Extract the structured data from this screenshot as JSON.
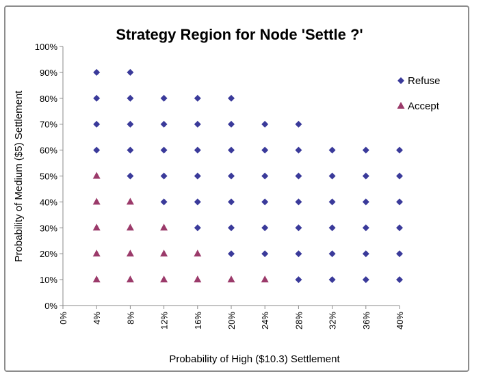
{
  "chart_data": {
    "type": "scatter",
    "title": "Strategy Region for Node 'Settle ?'",
    "xlabel": "Probability of High ($10.3) Settlement",
    "ylabel": "Probability of Medium ($5) Settlement",
    "xlim": [
      0,
      0.4
    ],
    "ylim": [
      0,
      1.0
    ],
    "x_ticks": [
      "0%",
      "4%",
      "8%",
      "12%",
      "16%",
      "20%",
      "24%",
      "28%",
      "32%",
      "36%",
      "40%"
    ],
    "y_ticks": [
      "0%",
      "10%",
      "20%",
      "30%",
      "40%",
      "50%",
      "60%",
      "70%",
      "80%",
      "90%",
      "100%"
    ],
    "grid": false,
    "legend_position": "right",
    "series": [
      {
        "name": "Refuse",
        "marker": "diamond",
        "color": "#3a3a9a",
        "points": [
          [
            0.04,
            0.6
          ],
          [
            0.04,
            0.7
          ],
          [
            0.04,
            0.8
          ],
          [
            0.04,
            0.9
          ],
          [
            0.08,
            0.5
          ],
          [
            0.08,
            0.6
          ],
          [
            0.08,
            0.7
          ],
          [
            0.08,
            0.8
          ],
          [
            0.08,
            0.9
          ],
          [
            0.12,
            0.4
          ],
          [
            0.12,
            0.5
          ],
          [
            0.12,
            0.6
          ],
          [
            0.12,
            0.7
          ],
          [
            0.12,
            0.8
          ],
          [
            0.16,
            0.3
          ],
          [
            0.16,
            0.4
          ],
          [
            0.16,
            0.5
          ],
          [
            0.16,
            0.6
          ],
          [
            0.16,
            0.7
          ],
          [
            0.16,
            0.8
          ],
          [
            0.2,
            0.2
          ],
          [
            0.2,
            0.3
          ],
          [
            0.2,
            0.4
          ],
          [
            0.2,
            0.5
          ],
          [
            0.2,
            0.6
          ],
          [
            0.2,
            0.7
          ],
          [
            0.2,
            0.8
          ],
          [
            0.24,
            0.2
          ],
          [
            0.24,
            0.3
          ],
          [
            0.24,
            0.4
          ],
          [
            0.24,
            0.5
          ],
          [
            0.24,
            0.6
          ],
          [
            0.24,
            0.7
          ],
          [
            0.28,
            0.1
          ],
          [
            0.28,
            0.2
          ],
          [
            0.28,
            0.3
          ],
          [
            0.28,
            0.4
          ],
          [
            0.28,
            0.5
          ],
          [
            0.28,
            0.6
          ],
          [
            0.28,
            0.7
          ],
          [
            0.32,
            0.1
          ],
          [
            0.32,
            0.2
          ],
          [
            0.32,
            0.3
          ],
          [
            0.32,
            0.4
          ],
          [
            0.32,
            0.5
          ],
          [
            0.32,
            0.6
          ],
          [
            0.36,
            0.1
          ],
          [
            0.36,
            0.2
          ],
          [
            0.36,
            0.3
          ],
          [
            0.36,
            0.4
          ],
          [
            0.36,
            0.5
          ],
          [
            0.36,
            0.6
          ],
          [
            0.4,
            0.1
          ],
          [
            0.4,
            0.2
          ],
          [
            0.4,
            0.3
          ],
          [
            0.4,
            0.4
          ],
          [
            0.4,
            0.5
          ],
          [
            0.4,
            0.6
          ]
        ]
      },
      {
        "name": "Accept",
        "marker": "triangle",
        "color": "#9b3a6a",
        "points": [
          [
            0.04,
            0.1
          ],
          [
            0.04,
            0.2
          ],
          [
            0.04,
            0.3
          ],
          [
            0.04,
            0.4
          ],
          [
            0.04,
            0.5
          ],
          [
            0.08,
            0.1
          ],
          [
            0.08,
            0.2
          ],
          [
            0.08,
            0.3
          ],
          [
            0.08,
            0.4
          ],
          [
            0.12,
            0.1
          ],
          [
            0.12,
            0.2
          ],
          [
            0.12,
            0.3
          ],
          [
            0.16,
            0.1
          ],
          [
            0.16,
            0.2
          ],
          [
            0.2,
            0.1
          ],
          [
            0.24,
            0.1
          ]
        ]
      }
    ]
  }
}
